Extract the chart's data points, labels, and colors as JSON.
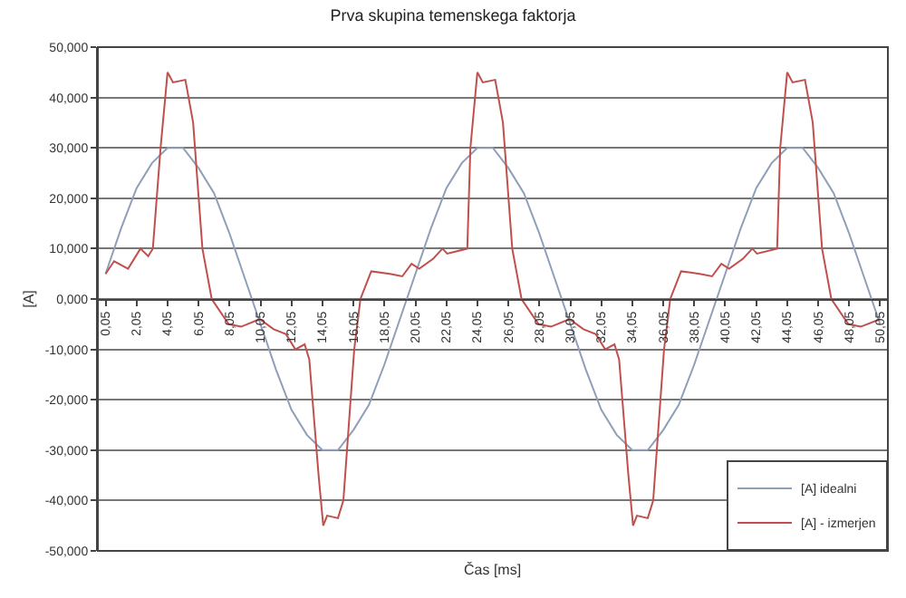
{
  "chart_data": {
    "type": "line",
    "title": "Prva skupina temenskega faktorja",
    "xlabel": "Čas [ms]",
    "ylabel": "[A]",
    "series": [
      {
        "name": "[A] idealni",
        "color": "#8f9fb8",
        "x": [
          0.05,
          1.05,
          2.05,
          3.05,
          4.05,
          5.05,
          6.05,
          7.05,
          8.05,
          9.05,
          10.05,
          11.05,
          12.05,
          13.05,
          14.05,
          15.05,
          16.05,
          17.05,
          18.05,
          19.05,
          20.05,
          21.05,
          22.05,
          23.05,
          24.05,
          25.05,
          26.05,
          27.05,
          28.05,
          29.05,
          30.05,
          31.05,
          32.05,
          33.05,
          34.05,
          35.05,
          36.05,
          37.05,
          38.05,
          39.05,
          40.05,
          41.05,
          42.05,
          43.05,
          44.05,
          45.05,
          46.05,
          47.05,
          48.05,
          49.05,
          50.05
        ],
        "values": [
          5,
          14,
          22,
          27,
          30,
          30,
          26,
          21,
          13,
          4,
          -5,
          -14,
          -22,
          -27,
          -30,
          -30,
          -26,
          -21,
          -13,
          -4,
          5,
          14,
          22,
          27,
          30,
          30,
          26,
          21,
          13,
          4,
          -5,
          -14,
          -22,
          -27,
          -30,
          -30,
          -26,
          -21,
          -13,
          -4,
          5,
          14,
          22,
          27,
          30,
          30,
          26,
          21,
          13,
          4,
          -5
        ]
      },
      {
        "name": "[A] - izmerjen",
        "color": "#c0504d",
        "x": [
          0.05,
          0.6,
          1.5,
          2.3,
          2.8,
          3.1,
          3.6,
          4.05,
          4.4,
          5.2,
          5.7,
          6.3,
          6.9,
          8.0,
          8.8,
          10.0,
          10.9,
          11.7,
          12.3,
          12.9,
          13.2,
          13.8,
          14.1,
          14.35,
          15.05,
          15.4,
          16.1,
          16.5,
          17.2,
          18.4,
          19.2,
          19.8,
          20.3,
          21.2,
          21.8,
          22.1,
          23.4,
          23.6,
          24.05,
          24.4,
          25.2,
          25.7,
          26.3,
          26.9,
          28.0,
          28.8,
          30.0,
          30.9,
          31.7,
          32.3,
          32.9,
          33.2,
          33.8,
          34.1,
          34.35,
          35.05,
          35.4,
          36.1,
          36.5,
          37.2,
          38.4,
          39.2,
          39.8,
          40.3,
          41.2,
          41.8,
          42.1,
          43.4,
          43.6,
          44.05,
          44.4,
          45.2,
          45.7,
          46.3,
          46.9,
          48.0,
          48.8,
          50.05
        ],
        "values": [
          5,
          7.5,
          6,
          10,
          8.5,
          10,
          30,
          45,
          43,
          43.5,
          35,
          10,
          0,
          -5,
          -5.5,
          -4,
          -6,
          -7,
          -10,
          -9,
          -12,
          -35,
          -45,
          -43,
          -43.5,
          -40,
          -10,
          0,
          5.5,
          5,
          4.5,
          7,
          6,
          8,
          10,
          9,
          10,
          30,
          45,
          43,
          43.5,
          35,
          10,
          0,
          -5,
          -5.5,
          -4,
          -6,
          -7,
          -10,
          -9,
          -12,
          -35,
          -45,
          -43,
          -43.5,
          -40,
          -10,
          0,
          5.5,
          5,
          4.5,
          7,
          6,
          8,
          10,
          9,
          10,
          30,
          45,
          43,
          43.5,
          35,
          10,
          0,
          -5,
          -5.5,
          -4
        ]
      }
    ],
    "xlim": [
      -0.45,
      50.55
    ],
    "xticks": [
      {
        "value": 0.05,
        "label": "0,05"
      },
      {
        "value": 2.05,
        "label": "2,05"
      },
      {
        "value": 4.05,
        "label": "4,05"
      },
      {
        "value": 6.05,
        "label": "6,05"
      },
      {
        "value": 8.05,
        "label": "8,05"
      },
      {
        "value": 10.05,
        "label": "10,05"
      },
      {
        "value": 12.05,
        "label": "12,05"
      },
      {
        "value": 14.05,
        "label": "14,05"
      },
      {
        "value": 16.05,
        "label": "16,05"
      },
      {
        "value": 18.05,
        "label": "18,05"
      },
      {
        "value": 20.05,
        "label": "20,05"
      },
      {
        "value": 22.05,
        "label": "22,05"
      },
      {
        "value": 24.05,
        "label": "24,05"
      },
      {
        "value": 26.05,
        "label": "26,05"
      },
      {
        "value": 28.05,
        "label": "28,05"
      },
      {
        "value": 30.05,
        "label": "30,05"
      },
      {
        "value": 32.05,
        "label": "32,05"
      },
      {
        "value": 34.05,
        "label": "34,05"
      },
      {
        "value": 36.05,
        "label": "36,05"
      },
      {
        "value": 38.05,
        "label": "38,05"
      },
      {
        "value": 40.05,
        "label": "40,05"
      },
      {
        "value": 42.05,
        "label": "42,05"
      },
      {
        "value": 44.05,
        "label": "44,05"
      },
      {
        "value": 46.05,
        "label": "46,05"
      },
      {
        "value": 48.05,
        "label": "48,05"
      },
      {
        "value": 50.05,
        "label": "50,05"
      }
    ],
    "ylim": [
      -50,
      50
    ],
    "yticks": [
      {
        "value": -50,
        "label": "-50,000"
      },
      {
        "value": -40,
        "label": "-40,000"
      },
      {
        "value": -30,
        "label": "-30,000"
      },
      {
        "value": -20,
        "label": "-20,000"
      },
      {
        "value": -10,
        "label": "-10,000"
      },
      {
        "value": 0,
        "label": "0,000"
      },
      {
        "value": 10,
        "label": "10,000"
      },
      {
        "value": 20,
        "label": "20,000"
      },
      {
        "value": 30,
        "label": "30,000"
      },
      {
        "value": 40,
        "label": "40,000"
      },
      {
        "value": 50,
        "label": "50,000"
      }
    ],
    "grid": "y",
    "legend": "bottom right",
    "marker": "none",
    "line_style": "solid"
  }
}
